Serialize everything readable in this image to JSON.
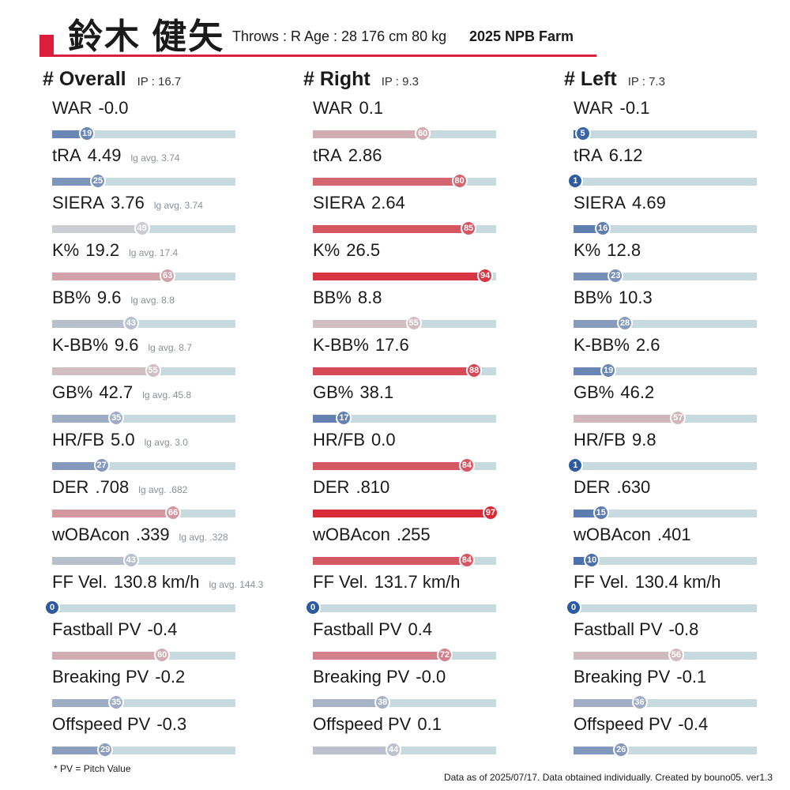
{
  "header": {
    "player_name": "鈴木 健矢",
    "player_info": "Throws : R  Age : 28  176 cm 80 kg",
    "league": "2025 NPB Farm"
  },
  "footer": {
    "footnote": "* PV = Pitch Value",
    "credits": "Data as of 2025/07/17. Data obtained individually. Created by bouno05.  ver1.3"
  },
  "colors": {
    "accent": "#dc1e3c",
    "track": "#c7dadf",
    "low": "#2c5aa0",
    "mid": "#cfcfd4",
    "high": "#d7202e"
  },
  "chart_data": {
    "type": "bar",
    "scale": [
      0,
      100
    ],
    "measure": "percentile",
    "panels": [
      {
        "title": "# Overall",
        "ip": "IP : 16.7",
        "metrics": [
          {
            "label": "WAR",
            "value": "-0.0",
            "avg": "",
            "percentile": 19
          },
          {
            "label": "tRA",
            "value": "4.49",
            "avg": "lg avg. 3.74",
            "percentile": 25
          },
          {
            "label": "SIERA",
            "value": "3.76",
            "avg": "lg avg. 3.74",
            "percentile": 49
          },
          {
            "label": "K%",
            "value": "19.2",
            "avg": "lg avg. 17.4",
            "percentile": 63
          },
          {
            "label": "BB%",
            "value": "9.6",
            "avg": "lg avg. 8.8",
            "percentile": 43
          },
          {
            "label": "K-BB%",
            "value": "9.6",
            "avg": "lg avg. 8.7",
            "percentile": 55
          },
          {
            "label": "GB%",
            "value": "42.7",
            "avg": "lg avg. 45.8",
            "percentile": 35
          },
          {
            "label": "HR/FB",
            "value": "5.0",
            "avg": "lg avg. 3.0",
            "percentile": 27
          },
          {
            "label": "DER",
            "value": ".708",
            "avg": "lg avg. .682",
            "percentile": 66
          },
          {
            "label": "wOBAcon",
            "value": ".339",
            "avg": "lg avg. .328",
            "percentile": 43
          },
          {
            "label": "FF Vel.",
            "value": "130.8 km/h",
            "avg": "lg avg. 144.3",
            "percentile": 0
          },
          {
            "label": "Fastball PV",
            "value": "-0.4",
            "avg": "",
            "percentile": 60
          },
          {
            "label": "Breaking PV",
            "value": "-0.2",
            "avg": "",
            "percentile": 35
          },
          {
            "label": "Offspeed PV",
            "value": "-0.3",
            "avg": "",
            "percentile": 29
          }
        ]
      },
      {
        "title": "# Right",
        "ip": "IP : 9.3",
        "metrics": [
          {
            "label": "WAR",
            "value": "0.1",
            "avg": "",
            "percentile": 60
          },
          {
            "label": "tRA",
            "value": "2.86",
            "avg": "",
            "percentile": 80
          },
          {
            "label": "SIERA",
            "value": "2.64",
            "avg": "",
            "percentile": 85
          },
          {
            "label": "K%",
            "value": "26.5",
            "avg": "",
            "percentile": 94
          },
          {
            "label": "BB%",
            "value": "8.8",
            "avg": "",
            "percentile": 55
          },
          {
            "label": "K-BB%",
            "value": "17.6",
            "avg": "",
            "percentile": 88
          },
          {
            "label": "GB%",
            "value": "38.1",
            "avg": "",
            "percentile": 17
          },
          {
            "label": "HR/FB",
            "value": "0.0",
            "avg": "",
            "percentile": 84
          },
          {
            "label": "DER",
            "value": ".810",
            "avg": "",
            "percentile": 97
          },
          {
            "label": "wOBAcon",
            "value": ".255",
            "avg": "",
            "percentile": 84
          },
          {
            "label": "FF Vel.",
            "value": "131.7 km/h",
            "avg": "",
            "percentile": 0
          },
          {
            "label": "Fastball PV",
            "value": "0.4",
            "avg": "",
            "percentile": 72
          },
          {
            "label": "Breaking PV",
            "value": "-0.0",
            "avg": "",
            "percentile": 38
          },
          {
            "label": "Offspeed PV",
            "value": "0.1",
            "avg": "",
            "percentile": 44
          }
        ]
      },
      {
        "title": "# Left",
        "ip": "IP : 7.3",
        "metrics": [
          {
            "label": "WAR",
            "value": "-0.1",
            "avg": "",
            "percentile": 5
          },
          {
            "label": "tRA",
            "value": "6.12",
            "avg": "",
            "percentile": 1
          },
          {
            "label": "SIERA",
            "value": "4.69",
            "avg": "",
            "percentile": 16
          },
          {
            "label": "K%",
            "value": "12.8",
            "avg": "",
            "percentile": 23
          },
          {
            "label": "BB%",
            "value": "10.3",
            "avg": "",
            "percentile": 28
          },
          {
            "label": "K-BB%",
            "value": "2.6",
            "avg": "",
            "percentile": 19
          },
          {
            "label": "GB%",
            "value": "46.2",
            "avg": "",
            "percentile": 57
          },
          {
            "label": "HR/FB",
            "value": "9.8",
            "avg": "",
            "percentile": 1
          },
          {
            "label": "DER",
            "value": ".630",
            "avg": "",
            "percentile": 15
          },
          {
            "label": "wOBAcon",
            "value": ".401",
            "avg": "",
            "percentile": 10
          },
          {
            "label": "FF Vel.",
            "value": "130.4 km/h",
            "avg": "",
            "percentile": 0
          },
          {
            "label": "Fastball PV",
            "value": "-0.8",
            "avg": "",
            "percentile": 56
          },
          {
            "label": "Breaking PV",
            "value": "-0.1",
            "avg": "",
            "percentile": 36
          },
          {
            "label": "Offspeed PV",
            "value": "-0.4",
            "avg": "",
            "percentile": 26
          }
        ]
      }
    ]
  }
}
